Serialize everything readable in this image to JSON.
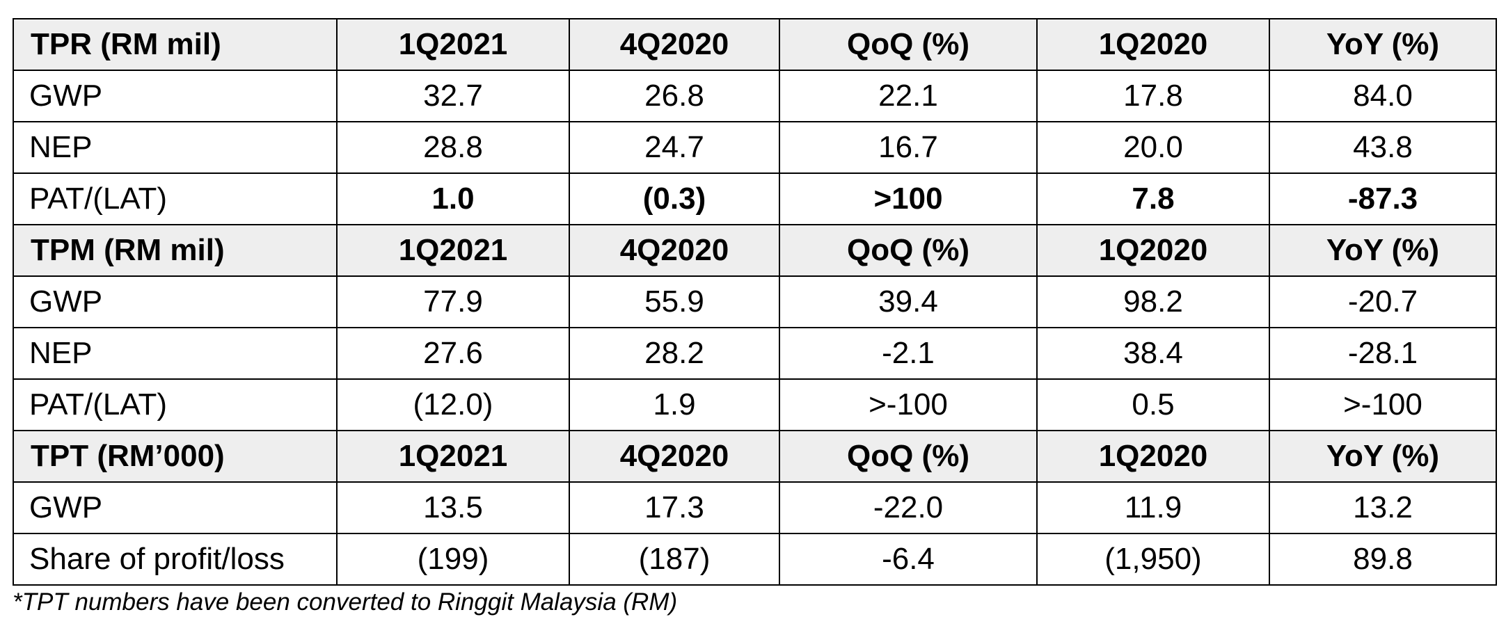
{
  "columns": [
    "1Q2021",
    "4Q2020",
    "QoQ (%)",
    "1Q2020",
    "YoY (%)"
  ],
  "sections": [
    {
      "title": "TPR (RM mil)",
      "rows": [
        {
          "label": "GWP",
          "values": [
            "32.7",
            "26.8",
            "22.1",
            "17.8",
            "84.0"
          ],
          "bold": false
        },
        {
          "label": "NEP",
          "values": [
            "28.8",
            "24.7",
            "16.7",
            "20.0",
            "43.8"
          ],
          "bold": false
        },
        {
          "label": "PAT/(LAT)",
          "values": [
            "1.0",
            "(0.3)",
            ">100",
            "7.8",
            "-87.3"
          ],
          "bold": true
        }
      ]
    },
    {
      "title": "TPM (RM mil)",
      "rows": [
        {
          "label": "GWP",
          "values": [
            "77.9",
            "55.9",
            "39.4",
            "98.2",
            "-20.7"
          ],
          "bold": false
        },
        {
          "label": "NEP",
          "values": [
            "27.6",
            "28.2",
            "-2.1",
            "38.4",
            "-28.1"
          ],
          "bold": false
        },
        {
          "label": "PAT/(LAT)",
          "values": [
            "(12.0)",
            "1.9",
            ">-100",
            "0.5",
            ">-100"
          ],
          "bold": false
        }
      ]
    },
    {
      "title": "TPT (RM’000)",
      "rows": [
        {
          "label": "GWP",
          "values": [
            "13.5",
            "17.3",
            "-22.0",
            "11.9",
            "13.2"
          ],
          "bold": false
        },
        {
          "label": "Share of profit/loss",
          "values": [
            "(199)",
            "(187)",
            "-6.4",
            "(1,950)",
            "89.8"
          ],
          "bold": false
        }
      ]
    }
  ],
  "footnote": "*TPT numbers have been converted to Ringgit Malaysia (RM)",
  "colors": {
    "header_background": "#eeeeee",
    "border": "#000000",
    "text": "#000000"
  }
}
